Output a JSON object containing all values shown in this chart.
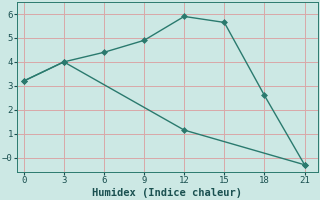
{
  "line1_x": [
    0,
    3,
    6,
    9,
    12,
    15,
    18,
    21
  ],
  "line1_y": [
    3.2,
    4.0,
    4.4,
    4.9,
    5.9,
    5.65,
    2.6,
    -0.3
  ],
  "line2_x": [
    0,
    3,
    12,
    21
  ],
  "line2_y": [
    3.2,
    4.0,
    1.15,
    -0.3
  ],
  "line_color": "#2a7a6e",
  "bg_color": "#cce8e4",
  "grid_color": "#d9a8a8",
  "xlabel": "Humidex (Indice chaleur)",
  "xlabel_fontsize": 7.5,
  "xticks": [
    0,
    3,
    6,
    9,
    12,
    15,
    18,
    21
  ],
  "yticks": [
    0,
    1,
    2,
    3,
    4,
    5,
    6
  ],
  "ylim": [
    -0.6,
    6.5
  ],
  "xlim": [
    -0.5,
    22
  ],
  "marker": "D",
  "markersize": 3,
  "linewidth": 1.0
}
